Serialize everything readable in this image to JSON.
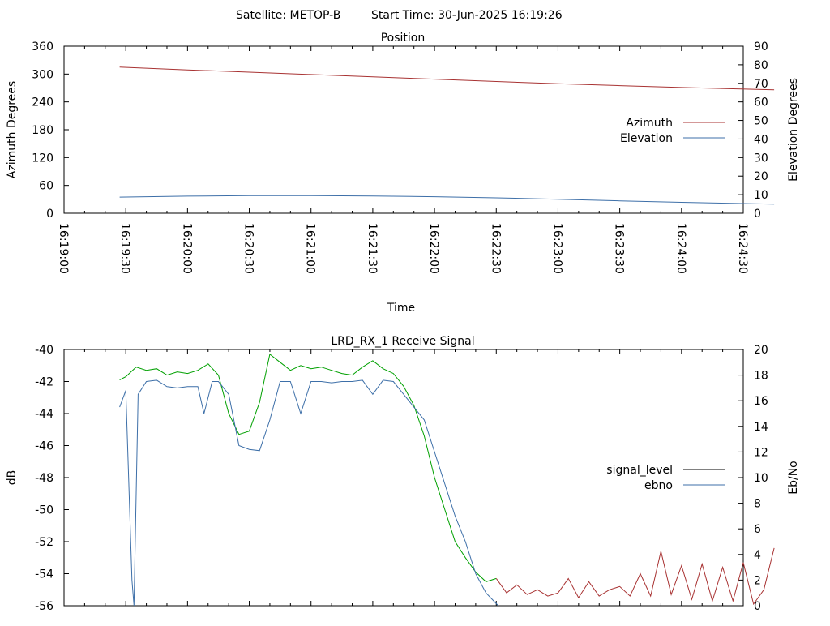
{
  "header": {
    "satellite": "Satellite: METOP-B",
    "start_time": "Start Time: 30-Jun-2025 16:19:26"
  },
  "chart_data": [
    {
      "type": "line",
      "title": "Position",
      "xlabel": "Time",
      "ylabel": "Azimuth Degrees",
      "y2label": "Elevation Degrees",
      "xlim": [
        "16:19:00",
        "16:24:30"
      ],
      "ylim": [
        0,
        360
      ],
      "y2lim": [
        0,
        90
      ],
      "xticks": [
        "16:19:00",
        "16:19:30",
        "16:20:00",
        "16:20:30",
        "16:21:00",
        "16:21:30",
        "16:22:00",
        "16:22:30",
        "16:23:00",
        "16:23:30",
        "16:24:00",
        "16:24:30"
      ],
      "yticks": [
        "0",
        "60",
        "120",
        "180",
        "240",
        "300",
        "360"
      ],
      "y2ticks": [
        "0",
        "10",
        "20",
        "30",
        "40",
        "50",
        "60",
        "70",
        "80",
        "90"
      ],
      "grid": false,
      "legend_position": "right",
      "series": [
        {
          "name": "Azimuth",
          "axis": "y",
          "color": "#a83232",
          "x": [
            "16:19:27",
            "16:20:00",
            "16:20:30",
            "16:21:00",
            "16:21:30",
            "16:22:00",
            "16:22:30",
            "16:23:00",
            "16:23:30",
            "16:24:00",
            "16:24:45"
          ],
          "y": [
            315,
            309,
            304,
            299,
            294,
            289,
            284,
            279,
            275,
            271,
            266
          ]
        },
        {
          "name": "Elevation",
          "axis": "y2",
          "color": "#3d6fa8",
          "x": [
            "16:19:27",
            "16:20:00",
            "16:20:30",
            "16:21:00",
            "16:21:30",
            "16:22:00",
            "16:22:30",
            "16:23:00",
            "16:23:30",
            "16:24:00",
            "16:24:45"
          ],
          "y": [
            8.7,
            9.2,
            9.5,
            9.5,
            9.3,
            8.9,
            8.3,
            7.5,
            6.7,
            5.9,
            4.9
          ]
        }
      ]
    },
    {
      "type": "line",
      "title": "LRD_RX_1 Receive Signal",
      "ylabel": "dB",
      "y2label": "Eb/No",
      "xlim": [
        "16:19:00",
        "16:24:30"
      ],
      "ylim": [
        -56,
        -40
      ],
      "y2lim": [
        0,
        20
      ],
      "yticks": [
        "-40",
        "-42",
        "-44",
        "-46",
        "-48",
        "-50",
        "-52",
        "-54",
        "-56"
      ],
      "y2ticks": [
        "0",
        "2",
        "4",
        "6",
        "8",
        "10",
        "12",
        "14",
        "16",
        "18",
        "20"
      ],
      "grid": false,
      "legend_position": "right",
      "series": [
        {
          "name": "signal_level",
          "axis": "y",
          "color": "#000000",
          "segment_colors": {
            "high": "#00a000",
            "low": "#a83232"
          },
          "x": [
            "16:19:27",
            "16:19:30",
            "16:19:35",
            "16:19:40",
            "16:19:45",
            "16:19:50",
            "16:19:55",
            "16:20:00",
            "16:20:05",
            "16:20:10",
            "16:20:15",
            "16:20:20",
            "16:20:25",
            "16:20:30",
            "16:20:35",
            "16:20:40",
            "16:20:45",
            "16:20:50",
            "16:20:55",
            "16:21:00",
            "16:21:05",
            "16:21:10",
            "16:21:15",
            "16:21:20",
            "16:21:25",
            "16:21:30",
            "16:21:35",
            "16:21:40",
            "16:21:45",
            "16:21:50",
            "16:21:55",
            "16:22:00",
            "16:22:05",
            "16:22:10",
            "16:22:15",
            "16:22:20",
            "16:22:25",
            "16:22:30",
            "16:22:35",
            "16:22:40",
            "16:22:45",
            "16:22:50",
            "16:22:55",
            "16:23:00",
            "16:23:05",
            "16:23:10",
            "16:23:15",
            "16:23:20",
            "16:23:25",
            "16:23:30",
            "16:23:35",
            "16:23:40",
            "16:23:45",
            "16:23:50",
            "16:23:55",
            "16:24:00",
            "16:24:05",
            "16:24:10",
            "16:24:15",
            "16:24:20",
            "16:24:25",
            "16:24:30",
            "16:24:35",
            "16:24:40",
            "16:24:45"
          ],
          "y": [
            -41.9,
            -41.7,
            -41.1,
            -41.3,
            -41.2,
            -41.6,
            -41.4,
            -41.5,
            -41.3,
            -40.9,
            -41.6,
            -44.0,
            -45.3,
            -45.1,
            -43.3,
            -40.3,
            -40.8,
            -41.3,
            -41.0,
            -41.2,
            -41.1,
            -41.3,
            -41.5,
            -41.6,
            -41.1,
            -40.7,
            -41.2,
            -41.5,
            -42.3,
            -43.5,
            -45.4,
            -48.0,
            -50.0,
            -52.0,
            -53.0,
            -53.9,
            -54.5,
            -54.3,
            -55.2,
            -54.7,
            -55.3,
            -55.0,
            -55.4,
            -55.2,
            -54.3,
            -55.5,
            -54.5,
            -55.4,
            -55.0,
            -54.8,
            -55.4,
            -54.0,
            -55.4,
            -52.6,
            -55.3,
            -53.5,
            -55.6,
            -53.4,
            -55.7,
            -53.6,
            -55.7,
            -53.3,
            -55.9,
            -55.0,
            -52.4
          ]
        },
        {
          "name": "ebno",
          "axis": "y2",
          "color": "#3d6fa8",
          "x": [
            "16:19:27",
            "16:19:30",
            "16:19:33",
            "16:19:34",
            "16:19:36",
            "16:19:40",
            "16:19:45",
            "16:19:50",
            "16:19:55",
            "16:20:00",
            "16:20:05",
            "16:20:08",
            "16:20:12",
            "16:20:15",
            "16:20:20",
            "16:20:25",
            "16:20:30",
            "16:20:35",
            "16:20:40",
            "16:20:45",
            "16:20:50",
            "16:20:55",
            "16:21:00",
            "16:21:05",
            "16:21:10",
            "16:21:15",
            "16:21:20",
            "16:21:25",
            "16:21:30",
            "16:21:35",
            "16:21:40",
            "16:21:45",
            "16:21:50",
            "16:21:55",
            "16:22:00",
            "16:22:05",
            "16:22:10",
            "16:22:15",
            "16:22:20",
            "16:22:25",
            "16:22:31"
          ],
          "y": [
            15.5,
            16.8,
            2.0,
            -0.5,
            16.5,
            17.5,
            17.6,
            17.1,
            17.0,
            17.1,
            17.1,
            15.0,
            17.5,
            17.5,
            16.5,
            12.5,
            12.2,
            12.1,
            14.5,
            17.5,
            17.5,
            15.0,
            17.5,
            17.5,
            17.4,
            17.5,
            17.5,
            17.6,
            16.5,
            17.6,
            17.5,
            16.5,
            15.5,
            14.5,
            12.0,
            9.5,
            7.0,
            5.0,
            2.5,
            1.0,
            0
          ]
        }
      ]
    }
  ]
}
